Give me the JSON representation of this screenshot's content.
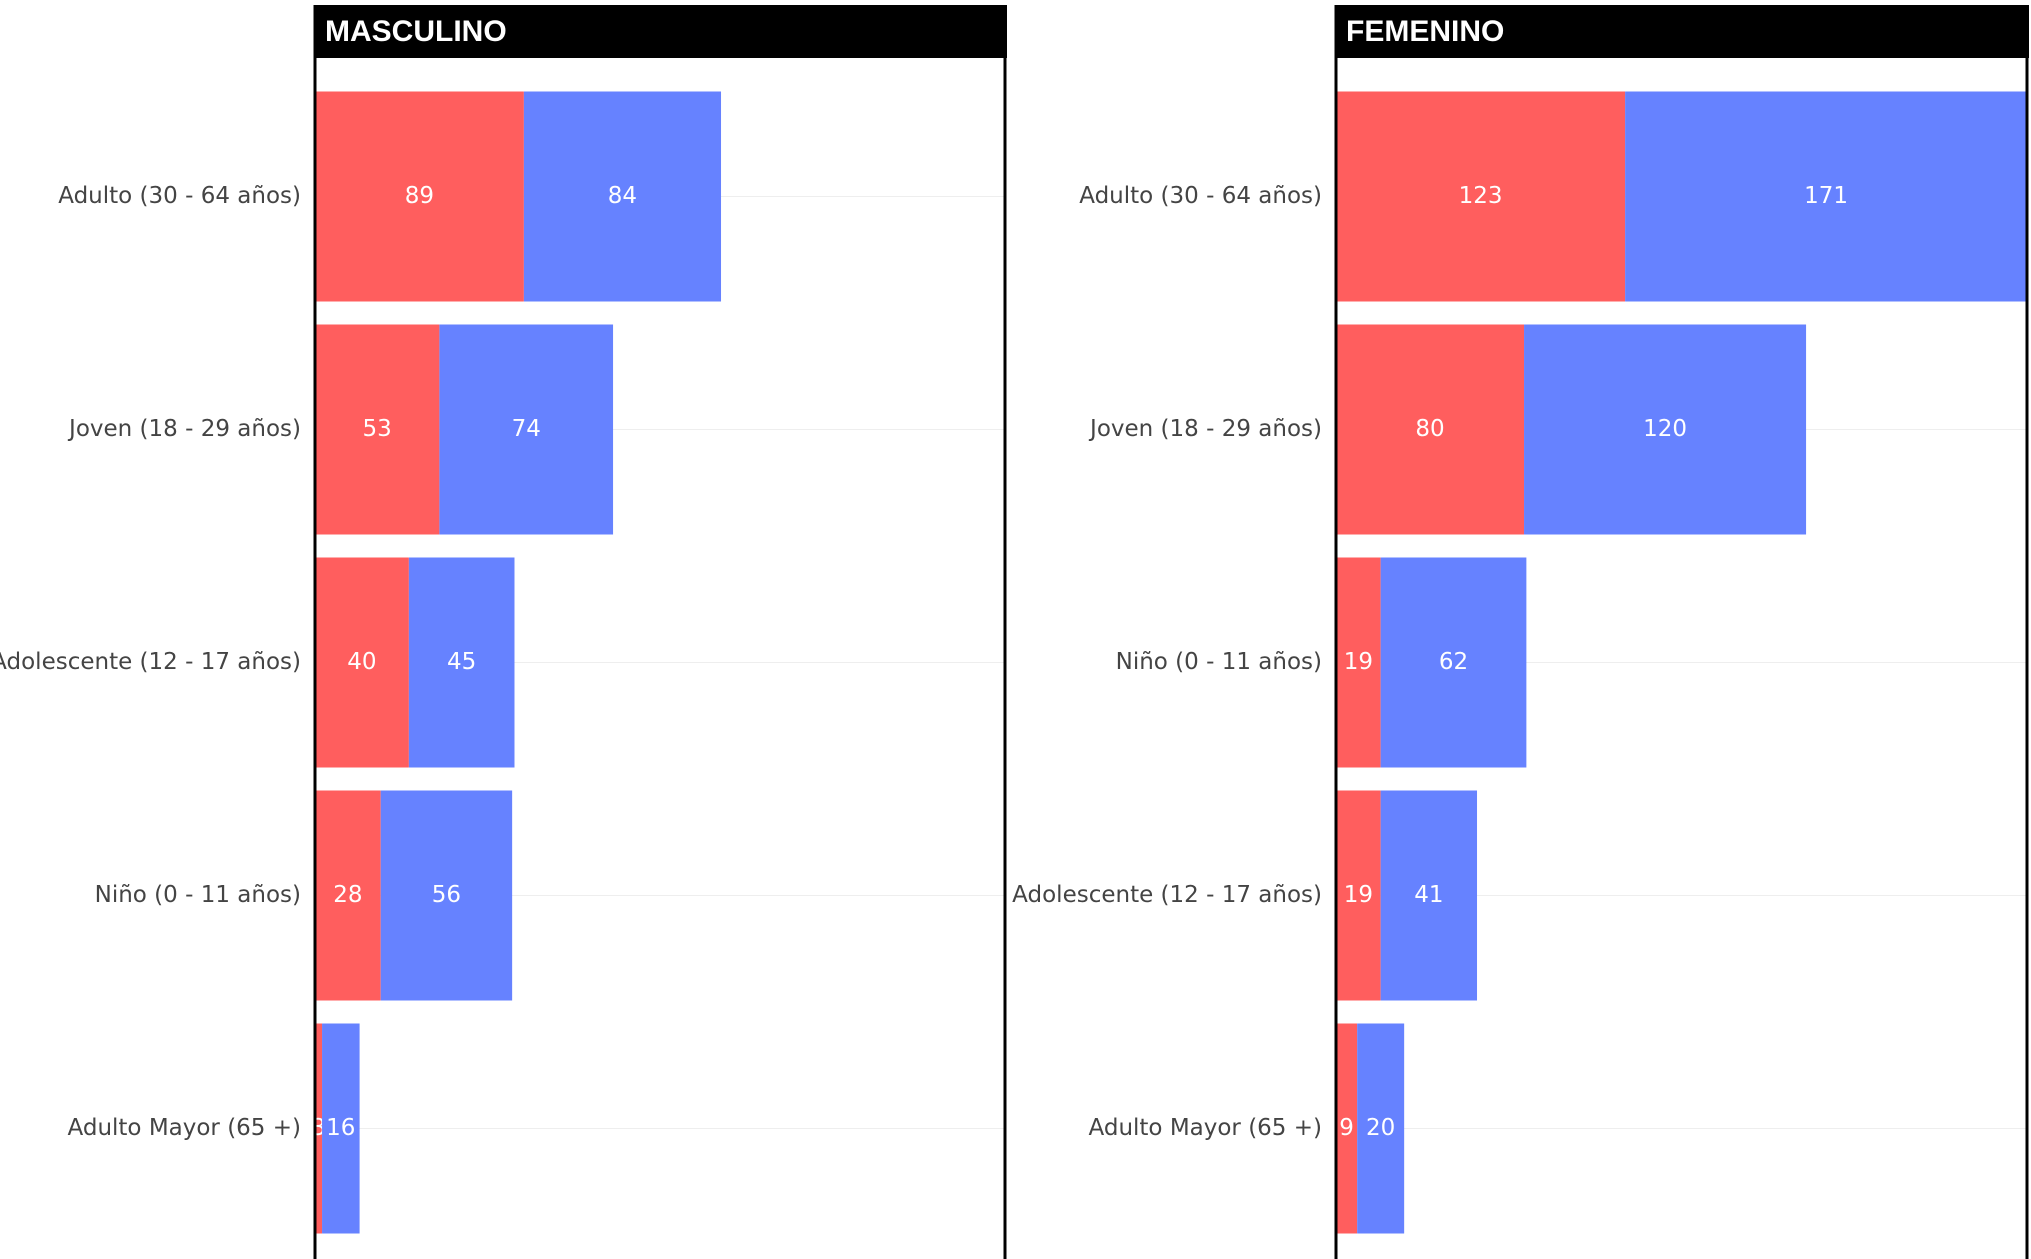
{
  "chart_data": [
    {
      "type": "bar",
      "orientation": "horizontal",
      "stacked": true,
      "title": "MASCULINO",
      "categories": [
        "Adulto (30 - 64 años)",
        "Joven (18 - 29 años)",
        "Adolescente (12 - 17 años)",
        "Niño (0 - 11 años)",
        "Adulto Mayor (65 +)"
      ],
      "series": [
        {
          "color": "#ff5e5e",
          "values": [
            89,
            53,
            40,
            28,
            3
          ]
        },
        {
          "color": "#6682ff",
          "values": [
            84,
            74,
            45,
            56,
            16
          ]
        }
      ],
      "xlim": [
        0,
        294
      ]
    },
    {
      "type": "bar",
      "orientation": "horizontal",
      "stacked": true,
      "title": "FEMENINO",
      "categories": [
        "Adulto (30 - 64 años)",
        "Joven (18 - 29 años)",
        "Niño (0 - 11 años)",
        "Adolescente (12 - 17 años)",
        "Adulto Mayor (65 +)"
      ],
      "series": [
        {
          "color": "#ff5e5e",
          "values": [
            123,
            80,
            19,
            19,
            9
          ]
        },
        {
          "color": "#6682ff",
          "values": [
            171,
            120,
            62,
            41,
            20
          ]
        }
      ],
      "xlim": [
        0,
        294
      ]
    }
  ]
}
